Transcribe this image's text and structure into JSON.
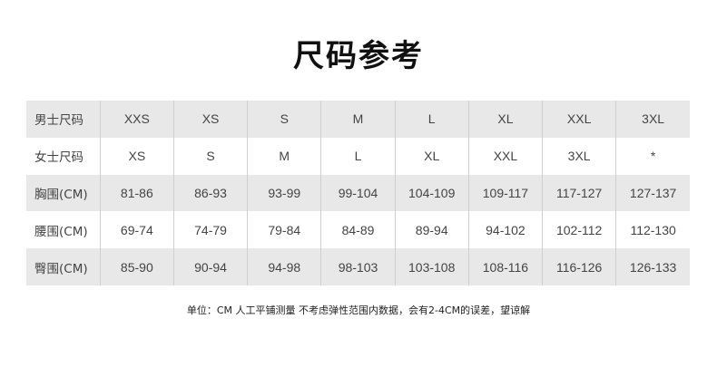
{
  "title": "尺码参考",
  "table": {
    "rows": [
      {
        "label": "男士尺码",
        "values": [
          "XXS",
          "XS",
          "S",
          "M",
          "L",
          "XL",
          "XXL",
          "3XL"
        ]
      },
      {
        "label": "女士尺码",
        "values": [
          "XS",
          "S",
          "M",
          "L",
          "XL",
          "XXL",
          "3XL",
          "*"
        ]
      },
      {
        "label": "胸围(CM)",
        "values": [
          "81-86",
          "86-93",
          "93-99",
          "99-104",
          "104-109",
          "109-117",
          "117-127",
          "127-137"
        ]
      },
      {
        "label": "腰围(CM)",
        "values": [
          "69-74",
          "74-79",
          "79-84",
          "84-89",
          "89-94",
          "94-102",
          "102-112",
          "112-130"
        ]
      },
      {
        "label": "臀围(CM)",
        "values": [
          "85-90",
          "90-94",
          "94-98",
          "98-103",
          "103-108",
          "108-116",
          "116-126",
          "126-133"
        ]
      }
    ]
  },
  "note": "单位：CM 人工平铺测量 不考虑弹性范围内数据，会有2-4CM的误差，望谅解",
  "colors": {
    "stripe": "#e8e8e8",
    "text": "#444444"
  }
}
